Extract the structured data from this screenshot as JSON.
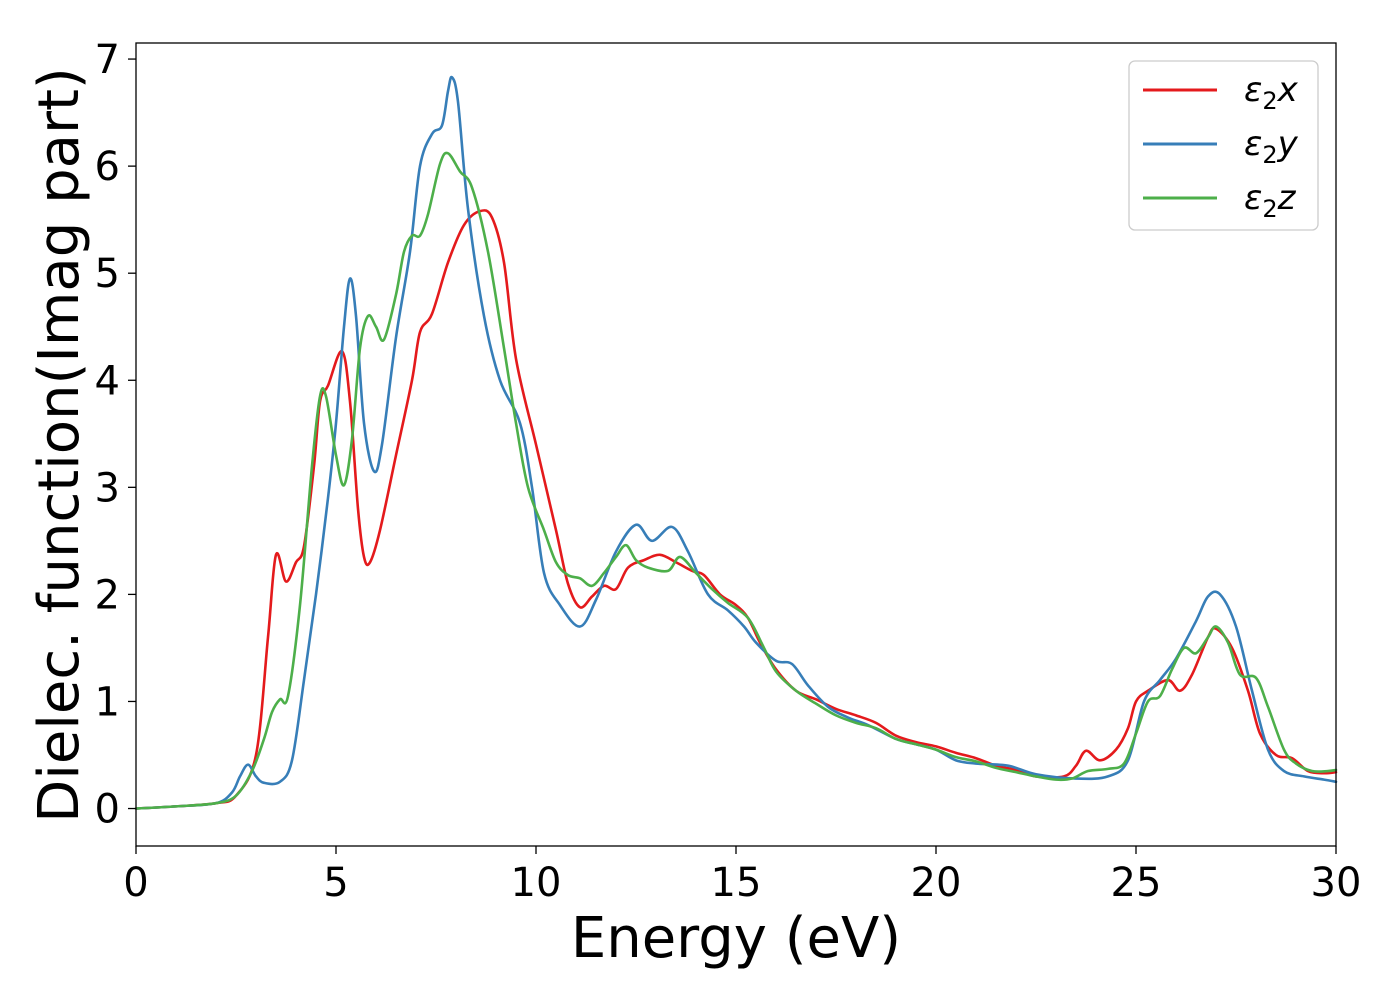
{
  "chart_data": {
    "type": "line",
    "title": "",
    "xlabel": "Energy (eV)",
    "ylabel": "Dielec. function(Imag part)",
    "xlim": [
      0,
      30
    ],
    "ylim": [
      -0.35,
      7.15
    ],
    "xticks": [
      0,
      5,
      10,
      15,
      20,
      25,
      30
    ],
    "yticks": [
      0,
      1,
      2,
      3,
      4,
      5,
      6,
      7
    ],
    "grid": false,
    "legend_position": "top-right",
    "series": [
      {
        "name": "ε₂x",
        "legend_base": "ε",
        "legend_sub": "2",
        "legend_suffix": "x",
        "color": "#e41a1c",
        "points": [
          [
            0,
            0
          ],
          [
            1,
            0.02
          ],
          [
            2,
            0.05
          ],
          [
            2.5,
            0.12
          ],
          [
            3,
            0.5
          ],
          [
            3.3,
            1.6
          ],
          [
            3.5,
            2.37
          ],
          [
            3.75,
            2.12
          ],
          [
            4,
            2.3
          ],
          [
            4.2,
            2.45
          ],
          [
            4.45,
            3.2
          ],
          [
            4.6,
            3.8
          ],
          [
            4.8,
            3.95
          ],
          [
            5.15,
            4.27
          ],
          [
            5.35,
            3.8
          ],
          [
            5.55,
            2.8
          ],
          [
            5.7,
            2.35
          ],
          [
            5.85,
            2.3
          ],
          [
            6.1,
            2.6
          ],
          [
            6.5,
            3.3
          ],
          [
            6.9,
            4.0
          ],
          [
            7.1,
            4.45
          ],
          [
            7.4,
            4.62
          ],
          [
            7.8,
            5.1
          ],
          [
            8.2,
            5.45
          ],
          [
            8.6,
            5.58
          ],
          [
            8.9,
            5.52
          ],
          [
            9.2,
            5.1
          ],
          [
            9.5,
            4.2
          ],
          [
            10,
            3.4
          ],
          [
            10.5,
            2.6
          ],
          [
            10.8,
            2.1
          ],
          [
            11.1,
            1.88
          ],
          [
            11.4,
            1.98
          ],
          [
            11.7,
            2.08
          ],
          [
            12.0,
            2.05
          ],
          [
            12.3,
            2.25
          ],
          [
            12.7,
            2.32
          ],
          [
            13.1,
            2.37
          ],
          [
            13.5,
            2.3
          ],
          [
            13.9,
            2.22
          ],
          [
            14.2,
            2.18
          ],
          [
            14.6,
            2.0
          ],
          [
            15.0,
            1.9
          ],
          [
            15.3,
            1.78
          ],
          [
            15.6,
            1.55
          ],
          [
            16.0,
            1.3
          ],
          [
            16.5,
            1.1
          ],
          [
            17.0,
            1.02
          ],
          [
            17.5,
            0.93
          ],
          [
            18.0,
            0.87
          ],
          [
            18.5,
            0.8
          ],
          [
            19.0,
            0.68
          ],
          [
            19.5,
            0.62
          ],
          [
            20.0,
            0.58
          ],
          [
            20.5,
            0.52
          ],
          [
            21.0,
            0.47
          ],
          [
            21.5,
            0.4
          ],
          [
            22.0,
            0.36
          ],
          [
            22.5,
            0.3
          ],
          [
            23.2,
            0.3
          ],
          [
            23.5,
            0.4
          ],
          [
            23.75,
            0.54
          ],
          [
            24.1,
            0.45
          ],
          [
            24.5,
            0.55
          ],
          [
            24.8,
            0.75
          ],
          [
            25.0,
            1.0
          ],
          [
            25.3,
            1.1
          ],
          [
            25.8,
            1.2
          ],
          [
            26.1,
            1.1
          ],
          [
            26.4,
            1.25
          ],
          [
            26.8,
            1.6
          ],
          [
            27.0,
            1.68
          ],
          [
            27.4,
            1.5
          ],
          [
            27.8,
            1.1
          ],
          [
            28.1,
            0.7
          ],
          [
            28.5,
            0.5
          ],
          [
            28.9,
            0.47
          ],
          [
            29.3,
            0.35
          ],
          [
            29.7,
            0.33
          ],
          [
            30,
            0.34
          ]
        ]
      },
      {
        "name": "ε₂y",
        "legend_base": "ε",
        "legend_sub": "2",
        "legend_suffix": "y",
        "color": "#377eb8",
        "points": [
          [
            0,
            0
          ],
          [
            1,
            0.02
          ],
          [
            2,
            0.05
          ],
          [
            2.4,
            0.15
          ],
          [
            2.6,
            0.3
          ],
          [
            2.8,
            0.41
          ],
          [
            3.0,
            0.3
          ],
          [
            3.2,
            0.24
          ],
          [
            3.6,
            0.25
          ],
          [
            3.9,
            0.45
          ],
          [
            4.2,
            1.2
          ],
          [
            4.5,
            2.0
          ],
          [
            4.8,
            2.9
          ],
          [
            5.0,
            3.6
          ],
          [
            5.2,
            4.5
          ],
          [
            5.35,
            4.95
          ],
          [
            5.5,
            4.6
          ],
          [
            5.7,
            3.6
          ],
          [
            5.95,
            3.15
          ],
          [
            6.15,
            3.4
          ],
          [
            6.5,
            4.4
          ],
          [
            6.85,
            5.2
          ],
          [
            7.1,
            6.0
          ],
          [
            7.4,
            6.3
          ],
          [
            7.65,
            6.38
          ],
          [
            7.8,
            6.7
          ],
          [
            7.9,
            6.83
          ],
          [
            8.05,
            6.6
          ],
          [
            8.3,
            5.6
          ],
          [
            8.7,
            4.6
          ],
          [
            9.1,
            4.0
          ],
          [
            9.6,
            3.6
          ],
          [
            9.9,
            3.0
          ],
          [
            10.2,
            2.2
          ],
          [
            10.6,
            1.9
          ],
          [
            11.1,
            1.7
          ],
          [
            11.5,
            1.95
          ],
          [
            12.0,
            2.4
          ],
          [
            12.5,
            2.65
          ],
          [
            12.9,
            2.5
          ],
          [
            13.4,
            2.63
          ],
          [
            13.8,
            2.4
          ],
          [
            14.3,
            2.0
          ],
          [
            14.8,
            1.85
          ],
          [
            15.2,
            1.7
          ],
          [
            15.5,
            1.55
          ],
          [
            16.0,
            1.38
          ],
          [
            16.4,
            1.35
          ],
          [
            16.8,
            1.15
          ],
          [
            17.3,
            0.95
          ],
          [
            17.8,
            0.85
          ],
          [
            18.3,
            0.78
          ],
          [
            19.0,
            0.65
          ],
          [
            19.5,
            0.6
          ],
          [
            20.0,
            0.55
          ],
          [
            20.5,
            0.45
          ],
          [
            21.0,
            0.42
          ],
          [
            21.8,
            0.4
          ],
          [
            22.5,
            0.32
          ],
          [
            23.5,
            0.28
          ],
          [
            24.3,
            0.3
          ],
          [
            24.8,
            0.45
          ],
          [
            25.2,
            1.0
          ],
          [
            25.6,
            1.2
          ],
          [
            26.0,
            1.4
          ],
          [
            26.5,
            1.75
          ],
          [
            26.8,
            1.98
          ],
          [
            27.1,
            2.0
          ],
          [
            27.5,
            1.7
          ],
          [
            27.9,
            1.1
          ],
          [
            28.3,
            0.55
          ],
          [
            28.7,
            0.35
          ],
          [
            29.2,
            0.3
          ],
          [
            29.7,
            0.27
          ],
          [
            30,
            0.25
          ]
        ]
      },
      {
        "name": "ε₂z",
        "legend_base": "ε",
        "legend_sub": "2",
        "legend_suffix": "z",
        "color": "#4daf4a",
        "points": [
          [
            0,
            0
          ],
          [
            1,
            0.02
          ],
          [
            2,
            0.05
          ],
          [
            2.5,
            0.12
          ],
          [
            2.9,
            0.35
          ],
          [
            3.2,
            0.65
          ],
          [
            3.4,
            0.9
          ],
          [
            3.6,
            1.02
          ],
          [
            3.8,
            1.05
          ],
          [
            4.1,
            1.9
          ],
          [
            4.4,
            3.2
          ],
          [
            4.6,
            3.85
          ],
          [
            4.75,
            3.85
          ],
          [
            5.0,
            3.3
          ],
          [
            5.2,
            3.02
          ],
          [
            5.4,
            3.45
          ],
          [
            5.6,
            4.3
          ],
          [
            5.8,
            4.6
          ],
          [
            6.0,
            4.5
          ],
          [
            6.2,
            4.38
          ],
          [
            6.5,
            4.8
          ],
          [
            6.7,
            5.2
          ],
          [
            6.9,
            5.35
          ],
          [
            7.1,
            5.35
          ],
          [
            7.3,
            5.55
          ],
          [
            7.6,
            6.02
          ],
          [
            7.8,
            6.12
          ],
          [
            8.1,
            5.95
          ],
          [
            8.4,
            5.8
          ],
          [
            8.8,
            5.2
          ],
          [
            9.2,
            4.3
          ],
          [
            9.5,
            3.6
          ],
          [
            9.8,
            3.0
          ],
          [
            10.2,
            2.6
          ],
          [
            10.5,
            2.3
          ],
          [
            10.8,
            2.18
          ],
          [
            11.1,
            2.15
          ],
          [
            11.4,
            2.08
          ],
          [
            11.7,
            2.2
          ],
          [
            12.0,
            2.35
          ],
          [
            12.25,
            2.46
          ],
          [
            12.5,
            2.32
          ],
          [
            12.8,
            2.25
          ],
          [
            13.3,
            2.22
          ],
          [
            13.6,
            2.35
          ],
          [
            14.0,
            2.2
          ],
          [
            14.4,
            2.05
          ],
          [
            14.8,
            1.92
          ],
          [
            15.3,
            1.78
          ],
          [
            15.7,
            1.5
          ],
          [
            16.0,
            1.28
          ],
          [
            16.5,
            1.1
          ],
          [
            17.0,
            0.98
          ],
          [
            17.5,
            0.87
          ],
          [
            18.0,
            0.8
          ],
          [
            18.5,
            0.75
          ],
          [
            19.0,
            0.65
          ],
          [
            19.5,
            0.6
          ],
          [
            20.0,
            0.55
          ],
          [
            20.5,
            0.48
          ],
          [
            21.0,
            0.44
          ],
          [
            21.5,
            0.38
          ],
          [
            22.0,
            0.34
          ],
          [
            22.5,
            0.3
          ],
          [
            23.0,
            0.27
          ],
          [
            23.4,
            0.28
          ],
          [
            23.8,
            0.35
          ],
          [
            24.3,
            0.37
          ],
          [
            24.7,
            0.42
          ],
          [
            25.0,
            0.7
          ],
          [
            25.3,
            1.0
          ],
          [
            25.6,
            1.05
          ],
          [
            25.9,
            1.3
          ],
          [
            26.2,
            1.5
          ],
          [
            26.5,
            1.45
          ],
          [
            26.8,
            1.6
          ],
          [
            27.0,
            1.7
          ],
          [
            27.3,
            1.55
          ],
          [
            27.6,
            1.25
          ],
          [
            28.0,
            1.22
          ],
          [
            28.3,
            0.95
          ],
          [
            28.7,
            0.55
          ],
          [
            29.0,
            0.42
          ],
          [
            29.4,
            0.35
          ],
          [
            29.8,
            0.35
          ],
          [
            30,
            0.36
          ]
        ]
      }
    ]
  }
}
